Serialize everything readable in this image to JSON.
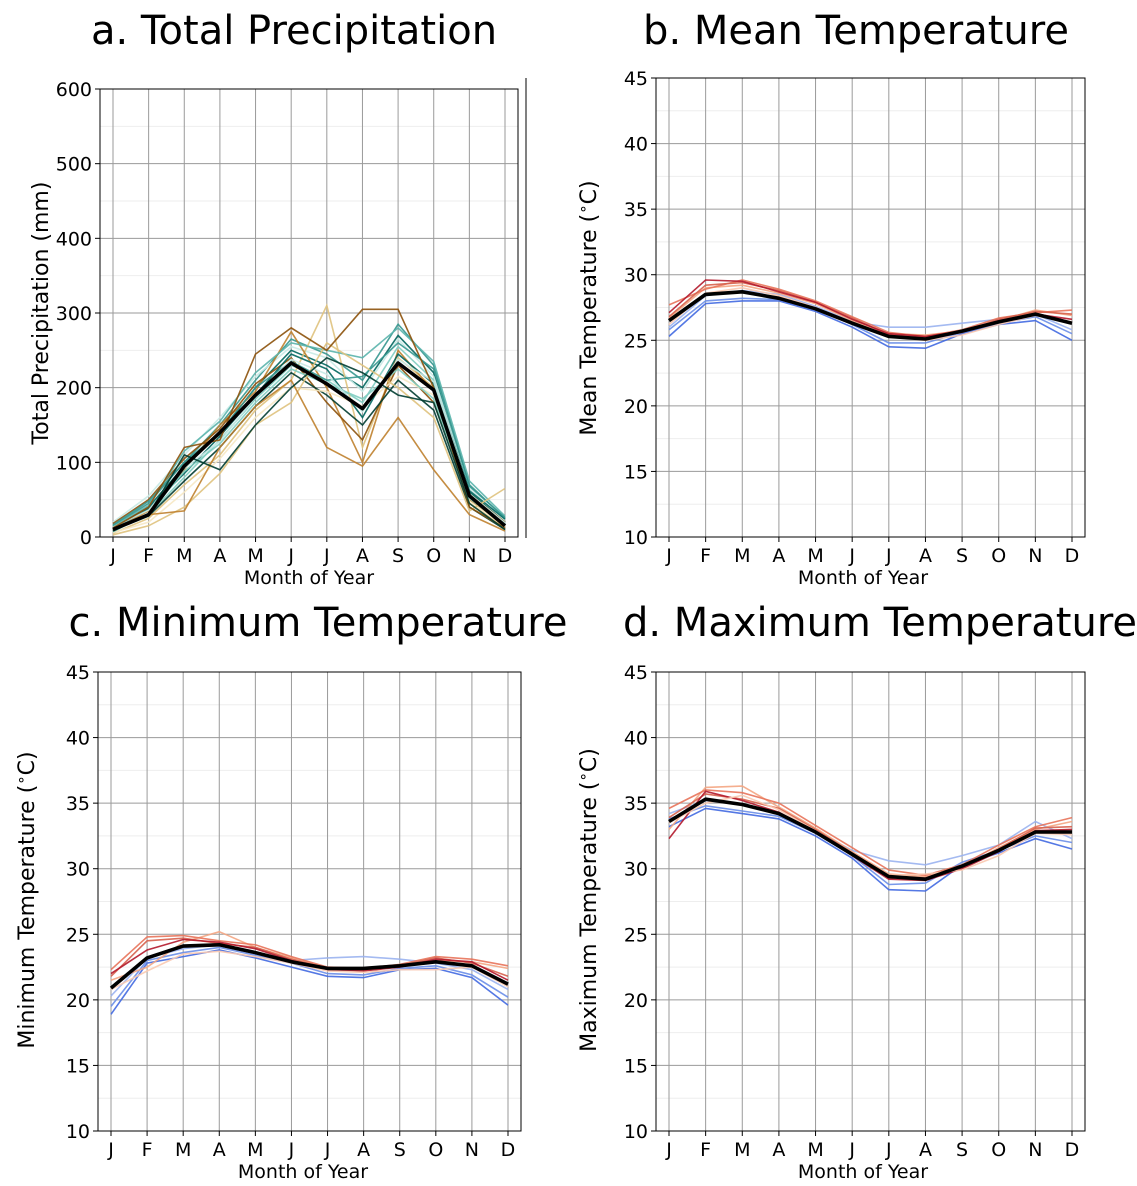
{
  "chart_data": [
    {
      "type": "line",
      "title": "a. Total Precipitation",
      "xlabel": "Month of Year",
      "ylabel": "Total Precipitation (mm)",
      "ylim": [
        0,
        600
      ],
      "yticks": [
        0,
        100,
        200,
        300,
        400,
        500,
        600
      ],
      "categories": [
        "J",
        "F",
        "M",
        "A",
        "M",
        "J",
        "J",
        "A",
        "S",
        "O",
        "N",
        "D"
      ],
      "grid": true,
      "colors": {
        "mean": "#000000",
        "ensemble": [
          "#01665e",
          "#35978f",
          "#80cdc1",
          "#c7eae5",
          "#dfc27d",
          "#bf812d",
          "#8c510a",
          "#003c30",
          "#5ab4ac",
          "#f6e8c3"
        ]
      },
      "ensemble": [
        [
          12,
          40,
          95,
          140,
          200,
          250,
          230,
          200,
          270,
          220,
          60,
          20
        ],
        [
          15,
          45,
          100,
          150,
          210,
          265,
          245,
          210,
          285,
          230,
          70,
          25
        ],
        [
          8,
          30,
          80,
          130,
          185,
          230,
          210,
          180,
          255,
          210,
          55,
          18
        ],
        [
          20,
          55,
          110,
          160,
          215,
          255,
          240,
          195,
          265,
          215,
          65,
          22
        ],
        [
          5,
          25,
          70,
          110,
          170,
          210,
          310,
          120,
          240,
          200,
          45,
          12
        ],
        [
          10,
          35,
          90,
          150,
          195,
          275,
          200,
          100,
          250,
          195,
          50,
          15
        ],
        [
          18,
          50,
          105,
          145,
          205,
          240,
          180,
          130,
          230,
          180,
          58,
          20
        ],
        [
          9,
          28,
          75,
          120,
          175,
          220,
          190,
          150,
          210,
          170,
          40,
          10
        ],
        [
          14,
          42,
          115,
          155,
          220,
          260,
          250,
          240,
          280,
          235,
          75,
          28
        ],
        [
          6,
          20,
          60,
          105,
          160,
          200,
          195,
          175,
          215,
          190,
          48,
          14
        ],
        [
          11,
          38,
          85,
          135,
          190,
          245,
          225,
          160,
          245,
          205,
          62,
          24
        ],
        [
          16,
          48,
          100,
          140,
          200,
          235,
          210,
          215,
          260,
          225,
          68,
          26
        ],
        [
          7,
          32,
          88,
          125,
          180,
          225,
          205,
          185,
          225,
          185,
          52,
          16
        ],
        [
          13,
          36,
          92,
          128,
          188,
          238,
          218,
          168,
          238,
          208,
          58,
          19
        ],
        [
          3,
          15,
          40,
          85,
          150,
          180,
          260,
          230,
          200,
          160,
          35,
          65
        ],
        [
          10,
          30,
          35,
          120,
          175,
          210,
          120,
          95,
          160,
          90,
          30,
          8
        ],
        [
          12,
          40,
          120,
          130,
          245,
          280,
          250,
          305,
          305,
          200,
          40,
          12
        ],
        [
          8,
          30,
          110,
          90,
          150,
          200,
          240,
          220,
          190,
          180,
          45,
          10
        ]
      ],
      "mean": [
        10,
        30,
        95,
        140,
        190,
        233,
        205,
        172,
        233,
        197,
        55,
        15
      ]
    },
    {
      "type": "line",
      "title": "b. Mean Temperature",
      "xlabel": "Month of Year",
      "ylabel": "Mean Temperature ($^\\circ$C)",
      "ylabel_text": "Mean Temperature (",
      "ylabel_unit": "C)",
      "ylim": [
        10,
        45
      ],
      "yticks": [
        10,
        15,
        20,
        25,
        30,
        35,
        40,
        45
      ],
      "categories": [
        "J",
        "F",
        "M",
        "A",
        "M",
        "J",
        "J",
        "A",
        "S",
        "O",
        "N",
        "D"
      ],
      "grid": true,
      "colors": {
        "mean": "#000000",
        "ensemble": [
          "#4169e1",
          "#6a8ee8",
          "#9ab3f0",
          "#f4a582",
          "#e8735a",
          "#d6604d",
          "#b2182b",
          "#fbc9b0"
        ]
      },
      "ensemble": [
        [
          25.3,
          27.8,
          28.0,
          28.0,
          27.2,
          26.0,
          24.5,
          24.4,
          25.5,
          26.2,
          26.5,
          25.0
        ],
        [
          25.8,
          28.0,
          28.2,
          28.1,
          27.4,
          26.2,
          24.8,
          24.8,
          25.6,
          26.3,
          26.8,
          25.5
        ],
        [
          26.0,
          28.4,
          28.8,
          28.5,
          27.6,
          26.4,
          26.0,
          26.0,
          26.3,
          26.6,
          27.0,
          25.8
        ],
        [
          26.7,
          29.0,
          29.2,
          28.6,
          27.8,
          26.5,
          25.5,
          25.4,
          25.7,
          26.5,
          27.3,
          26.9
        ],
        [
          27.7,
          28.9,
          29.6,
          28.9,
          28.0,
          26.8,
          25.6,
          25.3,
          25.8,
          26.7,
          27.1,
          27.3
        ],
        [
          26.8,
          29.2,
          29.4,
          28.8,
          27.9,
          26.7,
          25.4,
          25.2,
          25.6,
          26.6,
          27.2,
          27.0
        ],
        [
          27.1,
          29.6,
          29.5,
          28.7,
          27.9,
          26.6,
          25.5,
          25.3,
          25.7,
          26.5,
          27.0,
          26.6
        ],
        [
          26.2,
          28.6,
          29.0,
          28.4,
          27.5,
          26.3,
          25.3,
          25.0,
          25.4,
          26.2,
          26.9,
          26.4
        ]
      ],
      "mean": [
        26.5,
        28.5,
        28.7,
        28.2,
        27.4,
        26.3,
        25.3,
        25.1,
        25.7,
        26.4,
        27.0,
        26.3
      ]
    },
    {
      "type": "line",
      "title": "c. Minimum Temperature",
      "xlabel": "Month of Year",
      "ylabel": "Minimum Temperature ($^\\circ$C)",
      "ylabel_text": "Minimum Temperature (",
      "ylabel_unit": "C)",
      "ylim": [
        10,
        45
      ],
      "yticks": [
        10,
        15,
        20,
        25,
        30,
        35,
        40,
        45
      ],
      "categories": [
        "J",
        "F",
        "M",
        "A",
        "M",
        "J",
        "J",
        "A",
        "S",
        "O",
        "N",
        "D"
      ],
      "grid": true,
      "colors": {
        "mean": "#000000",
        "ensemble": [
          "#4169e1",
          "#6a8ee8",
          "#9ab3f0",
          "#f4a582",
          "#e8735a",
          "#d6604d",
          "#b2182b",
          "#fbc9b0"
        ]
      },
      "ensemble": [
        [
          18.9,
          22.8,
          23.3,
          23.8,
          23.2,
          22.5,
          21.8,
          21.7,
          22.3,
          22.4,
          21.7,
          19.6
        ],
        [
          19.5,
          23.0,
          23.6,
          24.0,
          23.4,
          22.8,
          22.0,
          21.9,
          22.4,
          22.6,
          21.9,
          20.2
        ],
        [
          20.3,
          23.2,
          23.9,
          24.2,
          23.6,
          23.0,
          23.2,
          23.3,
          23.1,
          22.8,
          22.3,
          20.8
        ],
        [
          21.5,
          22.5,
          24.4,
          25.2,
          24.0,
          23.2,
          22.4,
          22.3,
          22.6,
          23.0,
          22.9,
          22.4
        ],
        [
          22.3,
          24.8,
          24.9,
          24.5,
          24.2,
          23.3,
          22.5,
          22.4,
          22.7,
          23.3,
          23.1,
          22.6
        ],
        [
          21.8,
          24.5,
          24.7,
          24.3,
          24.0,
          23.1,
          22.4,
          22.3,
          22.6,
          23.2,
          22.8,
          21.8
        ],
        [
          22.0,
          23.8,
          24.6,
          24.4,
          23.9,
          23.0,
          22.3,
          22.2,
          22.5,
          23.1,
          22.9,
          21.5
        ],
        [
          20.8,
          22.2,
          23.5,
          23.7,
          23.3,
          22.8,
          22.2,
          22.1,
          22.3,
          22.3,
          22.5,
          21.0
        ]
      ],
      "mean": [
        20.9,
        23.2,
        24.1,
        24.2,
        23.6,
        22.9,
        22.4,
        22.4,
        22.6,
        22.9,
        22.6,
        21.2
      ]
    },
    {
      "type": "line",
      "title": "d. Maximum Temperature",
      "xlabel": "Month of Year",
      "ylabel": "Maximum Temperature ($^\\circ$C)",
      "ylabel_text": "Maximum Temperature (",
      "ylabel_unit": "C)",
      "ylim": [
        10,
        45
      ],
      "yticks": [
        10,
        15,
        20,
        25,
        30,
        35,
        40,
        45
      ],
      "categories": [
        "J",
        "F",
        "M",
        "A",
        "M",
        "J",
        "J",
        "A",
        "S",
        "O",
        "N",
        "D"
      ],
      "grid": true,
      "colors": {
        "mean": "#000000",
        "ensemble": [
          "#4169e1",
          "#6a8ee8",
          "#9ab3f0",
          "#f4a582",
          "#e8735a",
          "#d6604d",
          "#b2182b",
          "#fbc9b0"
        ]
      },
      "ensemble": [
        [
          33.2,
          34.6,
          34.2,
          33.8,
          32.5,
          30.8,
          28.4,
          28.3,
          30.3,
          31.2,
          32.3,
          31.5
        ],
        [
          33.8,
          34.8,
          34.4,
          34.0,
          32.7,
          31.0,
          28.8,
          28.9,
          30.5,
          31.4,
          32.5,
          32.0
        ],
        [
          34.2,
          35.2,
          34.9,
          34.2,
          32.9,
          31.4,
          30.6,
          30.3,
          31.0,
          31.8,
          33.6,
          32.3
        ],
        [
          33.0,
          36.2,
          36.3,
          34.7,
          33.1,
          31.3,
          29.6,
          29.4,
          30.1,
          31.6,
          33.0,
          33.6
        ],
        [
          34.6,
          36.0,
          35.8,
          35.0,
          33.3,
          31.6,
          29.9,
          29.5,
          30.3,
          31.8,
          33.2,
          33.9
        ],
        [
          33.9,
          35.7,
          35.3,
          34.6,
          33.0,
          31.2,
          29.4,
          29.3,
          30.2,
          31.5,
          33.1,
          33.2
        ],
        [
          32.3,
          35.9,
          35.2,
          34.3,
          32.8,
          31.0,
          29.2,
          29.1,
          30.0,
          31.3,
          32.9,
          33.0
        ],
        [
          33.5,
          35.0,
          35.6,
          34.5,
          32.9,
          31.1,
          29.5,
          29.6,
          29.9,
          31.0,
          32.7,
          32.6
        ]
      ],
      "mean": [
        33.6,
        35.3,
        34.9,
        34.2,
        32.8,
        31.1,
        29.4,
        29.2,
        30.2,
        31.4,
        32.8,
        32.8
      ]
    }
  ]
}
